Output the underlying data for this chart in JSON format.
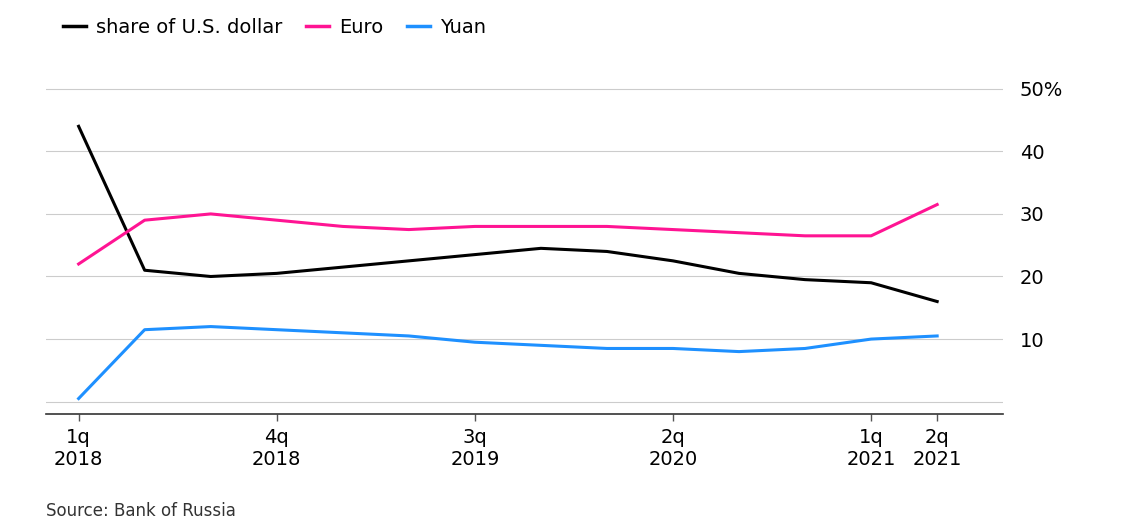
{
  "source_text": "Source: Bank of Russia",
  "legend_labels": [
    "share of U.S. dollar",
    "Euro",
    "Yuan"
  ],
  "legend_colors": [
    "#000000",
    "#FF1493",
    "#1E90FF"
  ],
  "yticks": [
    0,
    10,
    20,
    30,
    40,
    50
  ],
  "ylim": [
    -2,
    54
  ],
  "dollar_data": {
    "x": [
      0,
      1,
      2,
      3,
      4,
      5,
      6,
      7,
      8,
      9,
      10,
      11,
      12,
      13
    ],
    "y": [
      44,
      21,
      20,
      20.5,
      21.5,
      22.5,
      23.5,
      24.5,
      24,
      22.5,
      20.5,
      19.5,
      19,
      16
    ]
  },
  "euro_data": {
    "x": [
      0,
      1,
      2,
      3,
      4,
      5,
      6,
      7,
      8,
      9,
      10,
      11,
      12,
      13
    ],
    "y": [
      22,
      29,
      30,
      29,
      28,
      27.5,
      28,
      28,
      28,
      27.5,
      27,
      26.5,
      26.5,
      31.5
    ]
  },
  "yuan_data": {
    "x": [
      0,
      1,
      2,
      3,
      4,
      5,
      6,
      7,
      8,
      9,
      10,
      11,
      12,
      13
    ],
    "y": [
      0.5,
      11.5,
      12,
      11.5,
      11,
      10.5,
      9.5,
      9,
      8.5,
      8.5,
      8,
      8.5,
      10,
      10.5
    ]
  },
  "x_tick_positions": [
    0,
    3,
    6,
    9,
    12,
    13
  ],
  "x_labels_top": [
    "1q",
    "4q",
    "3q",
    "2q",
    "1q",
    "2q"
  ],
  "x_labels_bot": [
    "2018",
    "2018",
    "2019",
    "2020",
    "2021",
    "2021"
  ],
  "background_color": "#ffffff",
  "grid_color": "#cccccc",
  "line_width": 2.2
}
